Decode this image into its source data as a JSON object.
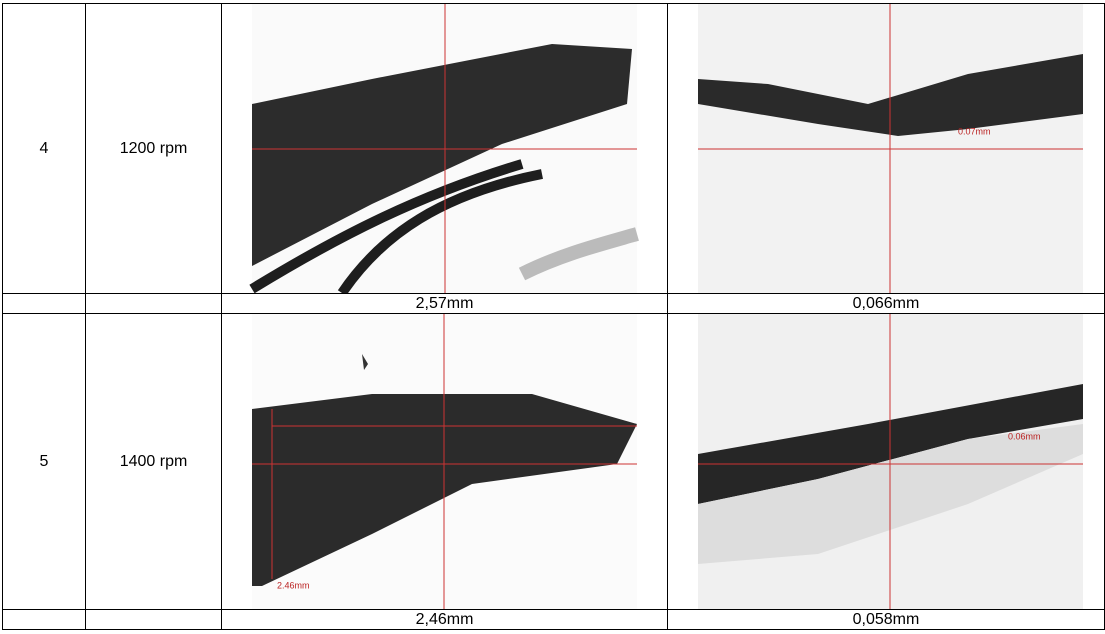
{
  "table": {
    "rows": [
      {
        "index": "4",
        "speed": "1200 rpm",
        "right_overlay": "0.07mm",
        "measurements": [
          "2,57mm",
          "0,066mm"
        ]
      },
      {
        "index": "5",
        "speed": "1400 rpm",
        "left_overlay": "2.46mm",
        "right_overlay": "0.06mm",
        "measurements": [
          "2,46mm",
          "0,058mm"
        ]
      }
    ]
  }
}
